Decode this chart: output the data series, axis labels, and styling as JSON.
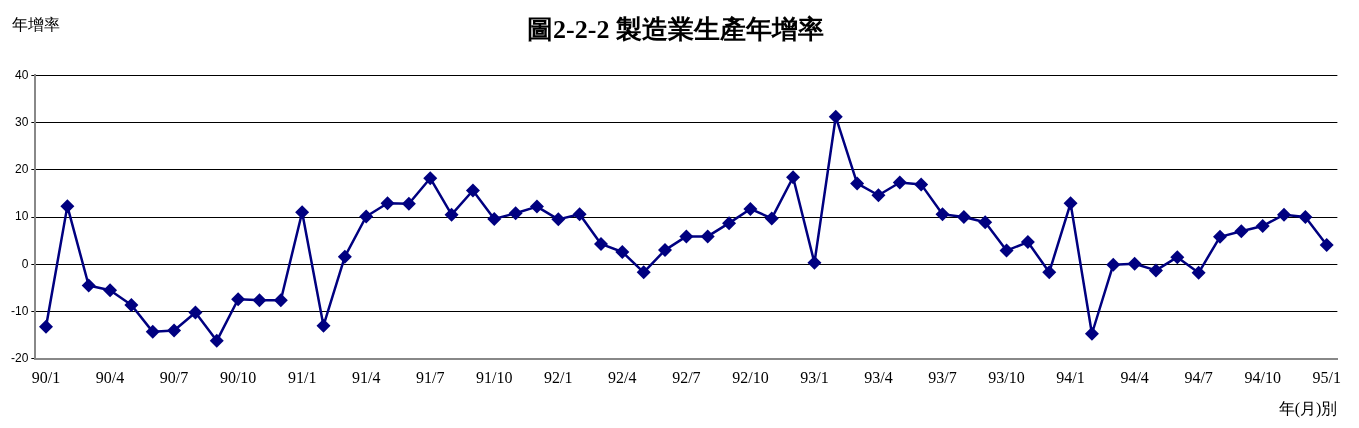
{
  "chart_data": {
    "type": "line",
    "title": "圖2-2-2 製造業生產年增率",
    "ylabel": "年增率",
    "xlabel": "年(月)別",
    "categories": [
      "90/1",
      null,
      null,
      "90/4",
      null,
      null,
      "90/7",
      null,
      null,
      "90/10",
      null,
      null,
      "91/1",
      null,
      null,
      "91/4",
      null,
      null,
      "91/7",
      null,
      null,
      "91/10",
      null,
      null,
      "92/1",
      null,
      null,
      "92/4",
      null,
      null,
      "92/7",
      null,
      null,
      "92/10",
      null,
      null,
      "93/1",
      null,
      null,
      "93/4",
      null,
      null,
      "93/7",
      null,
      null,
      "93/10",
      null,
      null,
      "94/1",
      null,
      null,
      "94/4",
      null,
      null,
      "94/7",
      null,
      null,
      "94/10",
      null,
      null,
      "95/1"
    ],
    "series": [
      {
        "color": "#000080",
        "values": [
          -13.2,
          12.3,
          -4.5,
          -5.5,
          -8.6,
          -14.3,
          -14.0,
          -10.2,
          -16.2,
          -7.4,
          -7.6,
          -7.6,
          11.0,
          -13.0,
          1.6,
          10.1,
          12.9,
          12.8,
          18.2,
          10.5,
          15.6,
          9.6,
          10.8,
          12.2,
          9.5,
          10.6,
          4.3,
          2.6,
          -1.7,
          3.0,
          5.9,
          5.9,
          8.7,
          11.7,
          9.7,
          18.4,
          0.3,
          31.2,
          17.1,
          14.6,
          17.3,
          16.9,
          10.6,
          10.0,
          8.9,
          2.9,
          4.7,
          -1.7,
          12.9,
          -14.7,
          -0.1,
          0.1,
          -1.3,
          1.5,
          -1.8,
          5.8,
          7.0,
          8.1,
          10.5,
          10.0,
          4.1
        ]
      }
    ],
    "ylim": [
      -20,
      40
    ],
    "yticks": [
      -20,
      -10,
      0,
      10,
      20,
      30,
      40
    ],
    "grid": "y",
    "legend": false,
    "marker": "diamond",
    "line_style": "solid"
  }
}
